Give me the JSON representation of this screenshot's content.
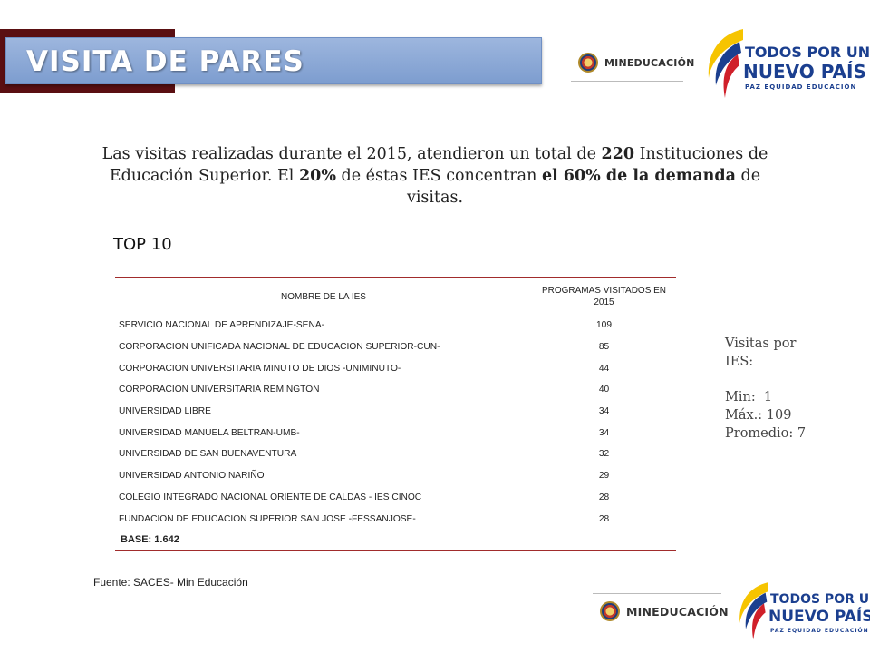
{
  "banner": {
    "title": "VISITA DE PARES"
  },
  "logos": {
    "ministry_text": "MINEDUCACIÓN",
    "gov_line1": "TODOS POR UN",
    "gov_line2": "NUEVO PAÍS",
    "gov_line3": "PAZ EQUIDAD EDUCACIÓN"
  },
  "intro": {
    "t1": "Las visitas realizadas durante el 2015, atendieron un total de ",
    "b1": "220",
    "t2": " Instituciones de Educación Superior. El ",
    "b2": "20%",
    "t3": " de éstas IES concentran ",
    "b3": "el 60% de la demanda",
    "t4": " de visitas."
  },
  "top10_label": "TOP 10",
  "table": {
    "col1": "NOMBRE DE LA IES",
    "col2": "PROGRAMAS VISITADOS EN 2015",
    "rows": [
      {
        "name": "SERVICIO NACIONAL DE APRENDIZAJE-SENA-",
        "value": "109"
      },
      {
        "name": "CORPORACION UNIFICADA NACIONAL DE EDUCACION SUPERIOR-CUN-",
        "value": "85"
      },
      {
        "name": "CORPORACION UNIVERSITARIA MINUTO DE DIOS -UNIMINUTO-",
        "value": "44"
      },
      {
        "name": "CORPORACION UNIVERSITARIA REMINGTON",
        "value": "40"
      },
      {
        "name": "UNIVERSIDAD LIBRE",
        "value": "34"
      },
      {
        "name": "UNIVERSIDAD MANUELA BELTRAN-UMB-",
        "value": "34"
      },
      {
        "name": "UNIVERSIDAD DE SAN BUENAVENTURA",
        "value": "32"
      },
      {
        "name": "UNIVERSIDAD ANTONIO NARIÑO",
        "value": "29"
      },
      {
        "name": "COLEGIO INTEGRADO NACIONAL ORIENTE DE CALDAS - IES CINOC",
        "value": "28"
      },
      {
        "name": "FUNDACION DE EDUCACION SUPERIOR SAN JOSE -FESSANJOSE-",
        "value": "28"
      }
    ],
    "footer": "BASE: 1.642"
  },
  "stats": {
    "heading1": "Visitas por",
    "heading2": "IES:",
    "min": "Min:  1",
    "max": "Máx.: 109",
    "avg": "Promedio: 7"
  },
  "source": "Fuente: SACES- Min Educación",
  "colors": {
    "banner": "#8eabd9",
    "banner_shadow": "#5a0f12",
    "table_rule": "#a12c2c",
    "gov_blue": "#1b3f8f"
  }
}
